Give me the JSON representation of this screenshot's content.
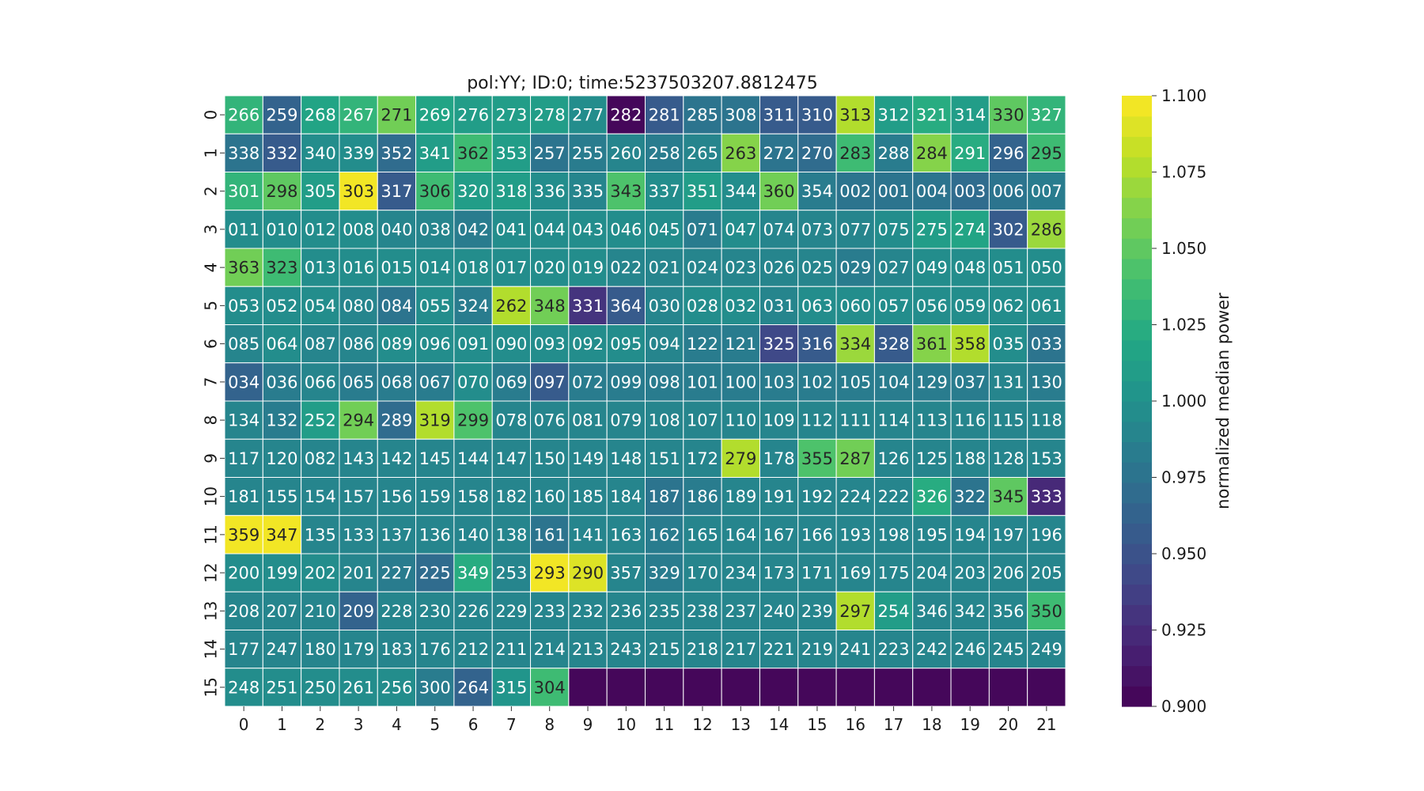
{
  "chart_data": {
    "type": "heatmap",
    "title": "pol:YY; ID:0; time:5237503207.8812475",
    "xlabel": "",
    "ylabel": "",
    "x_ticks": [
      "0",
      "1",
      "2",
      "3",
      "4",
      "5",
      "6",
      "7",
      "8",
      "9",
      "10",
      "11",
      "12",
      "13",
      "14",
      "15",
      "16",
      "17",
      "18",
      "19",
      "20",
      "21"
    ],
    "y_ticks": [
      "0",
      "1",
      "2",
      "3",
      "4",
      "5",
      "6",
      "7",
      "8",
      "9",
      "10",
      "11",
      "12",
      "13",
      "14",
      "15"
    ],
    "colorbar": {
      "label": "normalized median power",
      "range": [
        0.9,
        1.1
      ],
      "ticks": [
        "0.900",
        "0.925",
        "0.950",
        "0.975",
        "1.000",
        "1.025",
        "1.050",
        "1.075",
        "1.100"
      ],
      "colormap": "viridis",
      "levels": 30
    },
    "annotations": [
      [
        "266",
        "259",
        "268",
        "267",
        "271",
        "269",
        "276",
        "273",
        "278",
        "277",
        "282",
        "281",
        "285",
        "308",
        "311",
        "310",
        "313",
        "312",
        "321",
        "314",
        "330",
        "327"
      ],
      [
        "338",
        "332",
        "340",
        "339",
        "352",
        "341",
        "362",
        "353",
        "257",
        "255",
        "260",
        "258",
        "265",
        "263",
        "272",
        "270",
        "283",
        "288",
        "284",
        "291",
        "296",
        "295"
      ],
      [
        "301",
        "298",
        "305",
        "303",
        "317",
        "306",
        "320",
        "318",
        "336",
        "335",
        "343",
        "337",
        "351",
        "344",
        "360",
        "354",
        "002",
        "001",
        "004",
        "003",
        "006",
        "007"
      ],
      [
        "011",
        "010",
        "012",
        "008",
        "040",
        "038",
        "042",
        "041",
        "044",
        "043",
        "046",
        "045",
        "071",
        "047",
        "074",
        "073",
        "077",
        "075",
        "275",
        "274",
        "302",
        "286"
      ],
      [
        "363",
        "323",
        "013",
        "016",
        "015",
        "014",
        "018",
        "017",
        "020",
        "019",
        "022",
        "021",
        "024",
        "023",
        "026",
        "025",
        "029",
        "027",
        "049",
        "048",
        "051",
        "050"
      ],
      [
        "053",
        "052",
        "054",
        "080",
        "084",
        "055",
        "324",
        "262",
        "348",
        "331",
        "364",
        "030",
        "028",
        "032",
        "031",
        "063",
        "060",
        "057",
        "056",
        "059",
        "062",
        "061"
      ],
      [
        "085",
        "064",
        "087",
        "086",
        "089",
        "096",
        "091",
        "090",
        "093",
        "092",
        "095",
        "094",
        "122",
        "121",
        "325",
        "316",
        "334",
        "328",
        "361",
        "358",
        "035",
        "033"
      ],
      [
        "034",
        "036",
        "066",
        "065",
        "068",
        "067",
        "070",
        "069",
        "097",
        "072",
        "099",
        "098",
        "101",
        "100",
        "103",
        "102",
        "105",
        "104",
        "129",
        "037",
        "131",
        "130"
      ],
      [
        "134",
        "132",
        "252",
        "294",
        "289",
        "319",
        "299",
        "078",
        "076",
        "081",
        "079",
        "108",
        "107",
        "110",
        "109",
        "112",
        "111",
        "114",
        "113",
        "116",
        "115",
        "118"
      ],
      [
        "117",
        "120",
        "082",
        "143",
        "142",
        "145",
        "144",
        "147",
        "150",
        "149",
        "148",
        "151",
        "172",
        "279",
        "178",
        "355",
        "287",
        "126",
        "125",
        "188",
        "128",
        "153"
      ],
      [
        "181",
        "155",
        "154",
        "157",
        "156",
        "159",
        "158",
        "182",
        "160",
        "185",
        "184",
        "187",
        "186",
        "189",
        "191",
        "192",
        "224",
        "222",
        "326",
        "322",
        "345",
        "333"
      ],
      [
        "359",
        "347",
        "135",
        "133",
        "137",
        "136",
        "140",
        "138",
        "161",
        "141",
        "163",
        "162",
        "165",
        "164",
        "167",
        "166",
        "193",
        "198",
        "195",
        "194",
        "197",
        "196"
      ],
      [
        "200",
        "199",
        "202",
        "201",
        "227",
        "225",
        "349",
        "253",
        "293",
        "290",
        "357",
        "329",
        "170",
        "234",
        "173",
        "171",
        "169",
        "175",
        "204",
        "203",
        "206",
        "205"
      ],
      [
        "208",
        "207",
        "210",
        "209",
        "228",
        "230",
        "226",
        "229",
        "233",
        "232",
        "236",
        "235",
        "238",
        "237",
        "240",
        "239",
        "297",
        "254",
        "346",
        "342",
        "356",
        "350"
      ],
      [
        "177",
        "247",
        "180",
        "179",
        "183",
        "176",
        "212",
        "211",
        "214",
        "213",
        "243",
        "215",
        "218",
        "217",
        "221",
        "219",
        "241",
        "223",
        "242",
        "246",
        "245",
        "249"
      ],
      [
        "248",
        "251",
        "250",
        "261",
        "256",
        "300",
        "264",
        "315",
        "304",
        "",
        "",
        "",
        "",
        "",
        "",
        "",
        "",
        "",
        "",
        "",
        "",
        ""
      ]
    ],
    "values": [
      [
        1.03,
        0.965,
        1.02,
        1.03,
        1.06,
        1.02,
        1.01,
        1.01,
        1.01,
        1.0,
        0.9,
        0.96,
        0.975,
        0.975,
        0.955,
        0.955,
        1.075,
        1.01,
        1.025,
        1.01,
        1.05,
        1.03
      ],
      [
        0.98,
        0.955,
        1.0,
        1.0,
        0.97,
        1.01,
        1.04,
        1.01,
        0.98,
        0.985,
        0.99,
        0.985,
        0.99,
        1.065,
        0.975,
        0.97,
        1.035,
        0.985,
        1.065,
        1.025,
        0.965,
        1.04
      ],
      [
        1.03,
        1.05,
        1.01,
        1.1,
        0.955,
        1.035,
        1.01,
        1.01,
        1.0,
        0.99,
        1.045,
        1.0,
        1.01,
        1.0,
        1.055,
        0.985,
        0.975,
        0.975,
        0.98,
        0.97,
        0.98,
        0.985
      ],
      [
        0.995,
        0.995,
        1.0,
        0.995,
        0.99,
        0.99,
        0.985,
        0.995,
        0.995,
        0.995,
        0.995,
        0.995,
        0.985,
        0.995,
        0.99,
        0.99,
        0.99,
        0.995,
        1.01,
        1.02,
        0.96,
        1.07
      ],
      [
        1.055,
        1.035,
        0.995,
        0.995,
        0.995,
        0.995,
        0.995,
        0.995,
        0.995,
        0.995,
        0.99,
        0.99,
        0.99,
        0.99,
        0.99,
        0.99,
        0.985,
        0.99,
        0.995,
        0.995,
        0.995,
        0.995
      ],
      [
        1.0,
        0.995,
        0.995,
        0.99,
        0.98,
        0.995,
        0.985,
        1.075,
        1.06,
        0.93,
        0.955,
        0.99,
        0.995,
        0.995,
        0.99,
        0.995,
        0.995,
        0.995,
        0.995,
        0.995,
        0.995,
        0.995
      ],
      [
        0.99,
        0.995,
        0.99,
        0.99,
        0.995,
        0.995,
        0.995,
        0.995,
        0.995,
        0.995,
        0.995,
        0.99,
        0.985,
        0.985,
        0.945,
        0.96,
        1.07,
        0.96,
        1.065,
        1.08,
        0.995,
        0.975
      ],
      [
        0.965,
        0.985,
        0.99,
        0.985,
        0.985,
        0.985,
        0.995,
        0.985,
        0.955,
        0.985,
        0.985,
        0.985,
        0.985,
        0.985,
        0.985,
        0.985,
        0.985,
        0.985,
        0.985,
        0.985,
        0.99,
        0.985
      ],
      [
        0.99,
        0.985,
        1.01,
        1.06,
        0.97,
        1.075,
        1.045,
        0.99,
        0.99,
        0.99,
        0.99,
        0.99,
        0.99,
        0.99,
        0.99,
        0.99,
        0.99,
        0.99,
        0.99,
        0.99,
        0.99,
        0.99
      ],
      [
        0.99,
        0.99,
        0.99,
        0.99,
        0.99,
        0.99,
        0.99,
        0.99,
        0.99,
        0.99,
        0.99,
        0.99,
        0.99,
        1.08,
        0.99,
        1.045,
        1.06,
        0.99,
        0.99,
        0.99,
        0.99,
        0.99
      ],
      [
        0.99,
        0.99,
        0.99,
        0.99,
        0.99,
        0.99,
        0.99,
        0.99,
        0.99,
        0.99,
        0.99,
        0.98,
        0.985,
        0.99,
        0.99,
        0.99,
        0.99,
        0.99,
        1.025,
        0.975,
        1.05,
        0.92
      ],
      [
        1.1,
        1.1,
        0.99,
        0.99,
        0.99,
        0.99,
        0.99,
        0.99,
        0.975,
        0.99,
        0.99,
        0.985,
        0.99,
        0.99,
        0.99,
        0.99,
        0.99,
        0.99,
        0.99,
        0.99,
        0.99,
        0.99
      ],
      [
        1.0,
        0.995,
        0.995,
        0.99,
        0.985,
        0.97,
        1.025,
        0.99,
        1.1,
        1.09,
        0.99,
        0.985,
        0.99,
        0.99,
        0.99,
        0.99,
        0.99,
        0.99,
        0.99,
        0.99,
        0.99,
        0.99
      ],
      [
        0.99,
        0.99,
        0.99,
        0.965,
        0.99,
        0.99,
        0.99,
        0.99,
        0.99,
        0.99,
        0.99,
        0.99,
        0.99,
        0.99,
        0.99,
        0.99,
        1.075,
        1.01,
        0.99,
        0.99,
        0.99,
        1.04
      ],
      [
        0.99,
        0.99,
        0.99,
        0.99,
        0.99,
        0.99,
        0.99,
        0.99,
        0.99,
        0.99,
        0.99,
        0.99,
        0.99,
        0.99,
        0.99,
        0.99,
        0.99,
        0.99,
        0.99,
        0.99,
        0.99,
        0.99
      ],
      [
        1.0,
        0.995,
        1.0,
        1.0,
        1.0,
        0.985,
        0.965,
        1.005,
        1.04,
        0.9,
        0.9,
        0.9,
        0.9,
        0.9,
        0.9,
        0.9,
        0.9,
        0.9,
        0.9,
        0.9,
        0.9,
        0.9
      ]
    ],
    "grid": true
  }
}
